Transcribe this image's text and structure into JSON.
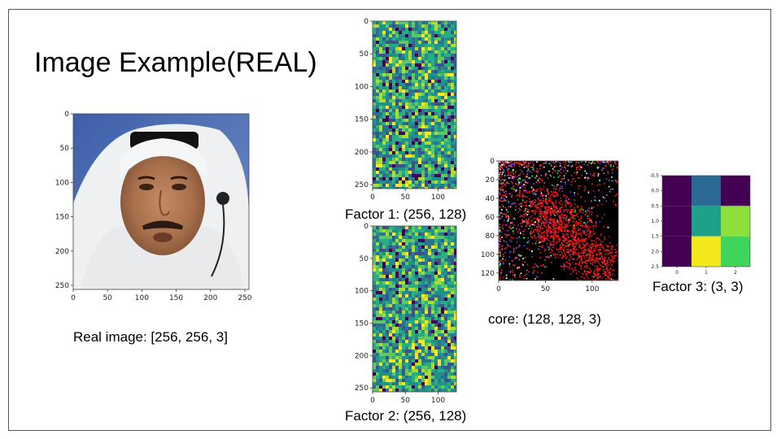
{
  "slide": {
    "title": "Image Example(REAL)",
    "captions": {
      "real": "Real image: [256, 256, 3]",
      "factor1": "Factor 1: (256, 128)",
      "factor2": "Factor 2: (256, 128)",
      "core": "core: (128, 128, 3)",
      "factor3": "Factor 3: (3, 3)"
    }
  },
  "chart_data": [
    {
      "id": "real-image",
      "type": "heatmap",
      "content": "photo of a man in white headdress",
      "xlim": [
        0,
        256
      ],
      "ylim": [
        256,
        0
      ],
      "xticks": [
        "0",
        "50",
        "100",
        "150",
        "200",
        "250"
      ],
      "yticks": [
        "0",
        "50",
        "100",
        "150",
        "200",
        "250"
      ]
    },
    {
      "id": "factor1",
      "type": "heatmap",
      "content": "random noise (viridis)",
      "xlim": [
        0,
        128
      ],
      "ylim": [
        256,
        0
      ],
      "xticks": [
        "0",
        "50",
        "100"
      ],
      "yticks": [
        "0",
        "50",
        "100",
        "150",
        "200",
        "250"
      ]
    },
    {
      "id": "factor2",
      "type": "heatmap",
      "content": "random noise (viridis)",
      "xlim": [
        0,
        128
      ],
      "ylim": [
        256,
        0
      ],
      "xticks": [
        "0",
        "50",
        "100"
      ],
      "yticks": [
        "0",
        "50",
        "100",
        "150",
        "200",
        "250"
      ]
    },
    {
      "id": "core",
      "type": "heatmap",
      "content": "sparse colored points, dense red cluster along diagonal",
      "xlim": [
        0,
        128
      ],
      "ylim": [
        128,
        0
      ],
      "xticks": [
        "0",
        "50",
        "100"
      ],
      "yticks": [
        "0",
        "20",
        "40",
        "60",
        "80",
        "100",
        "120"
      ]
    },
    {
      "id": "factor3",
      "type": "heatmap",
      "rows": 3,
      "cols": 3,
      "cell_colors": [
        [
          "#440154",
          "#2a6a95",
          "#440154"
        ],
        [
          "#440154",
          "#1fa088",
          "#8ddf3a"
        ],
        [
          "#440154",
          "#f3e81c",
          "#3fd45b"
        ]
      ],
      "xticks": [
        "0",
        "1",
        "2"
      ],
      "yticks": [
        "-0.5",
        "0.0",
        "0.5",
        "1.0",
        "1.5",
        "2.0",
        "2.5"
      ]
    }
  ]
}
